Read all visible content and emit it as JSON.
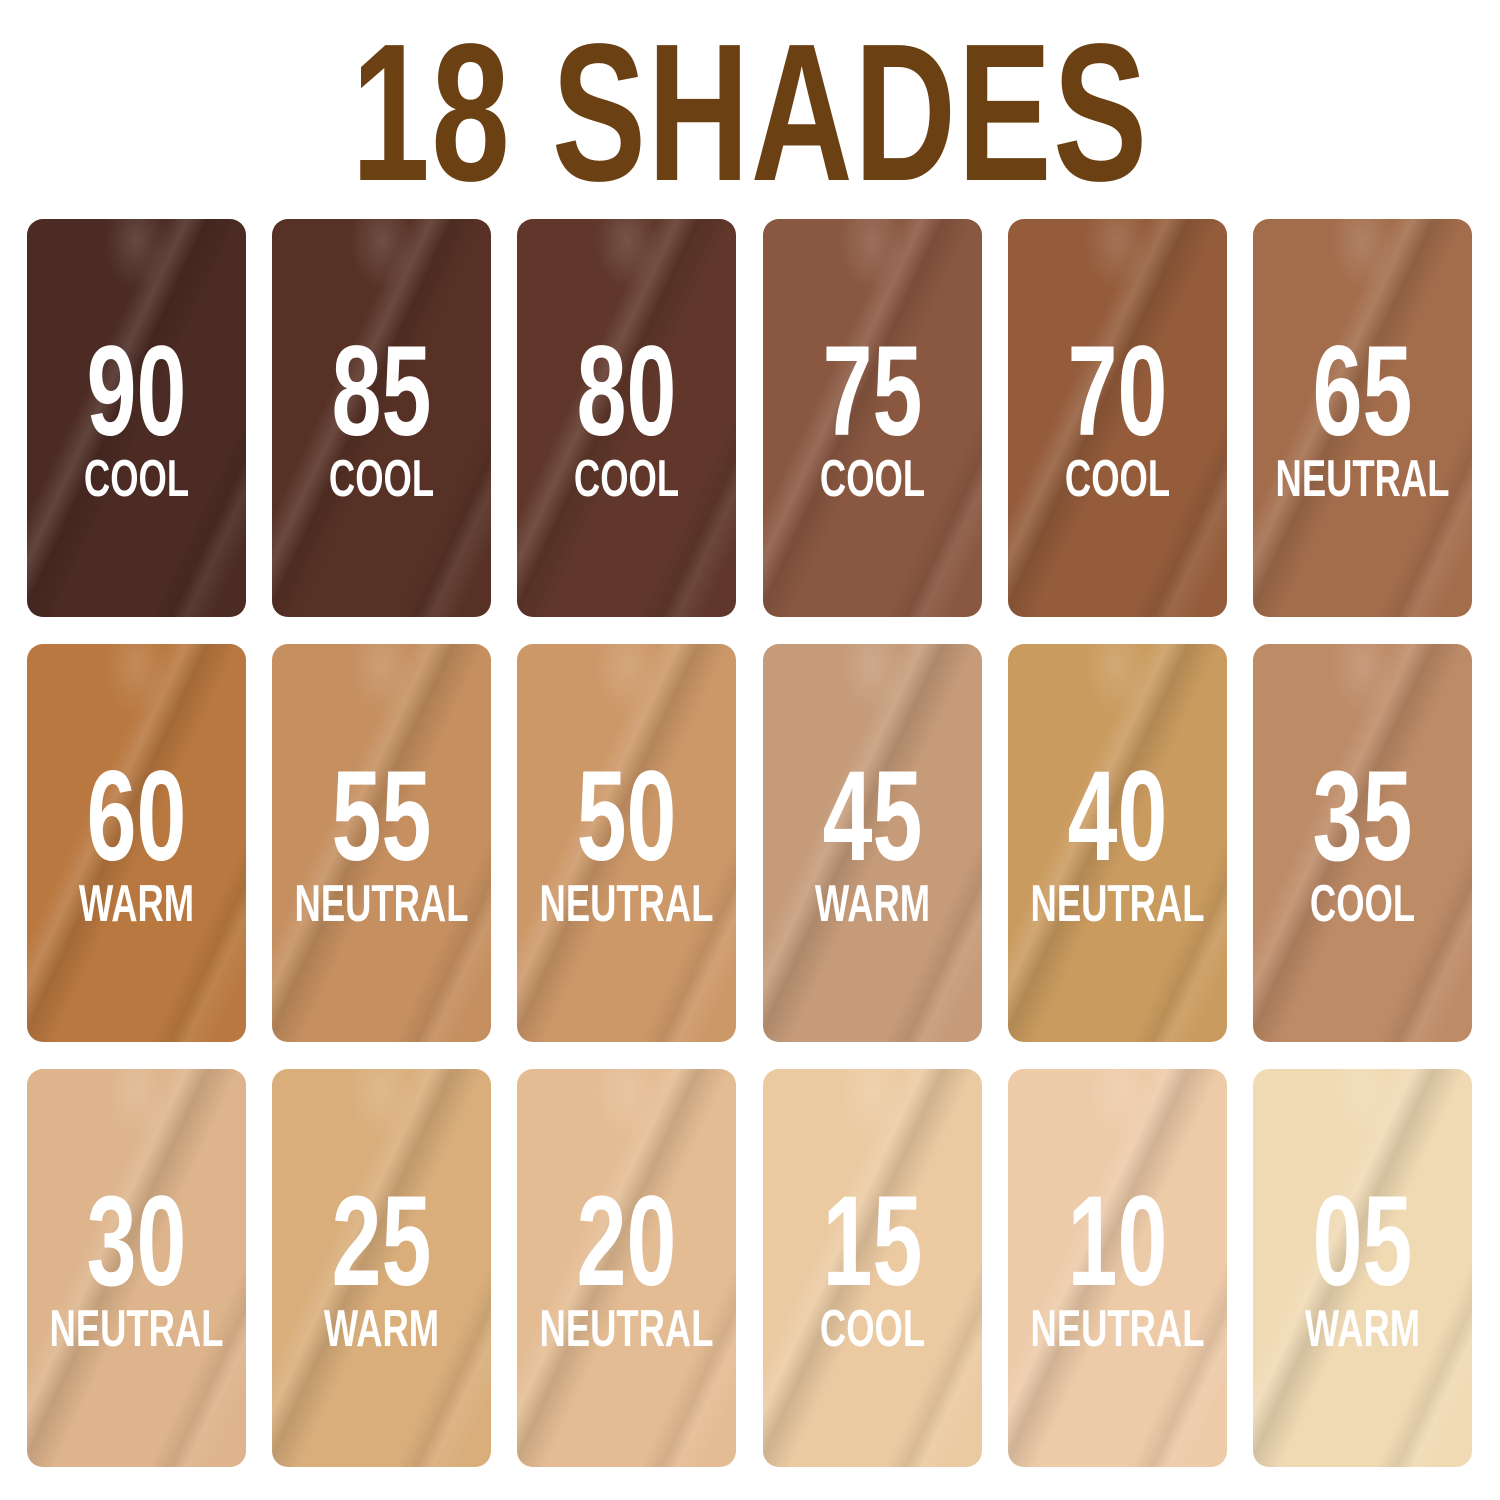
{
  "title": "18 SHADES",
  "title_color": "#6b4114",
  "shades": [
    {
      "number": "90",
      "tone": "COOL",
      "color": "#4b2b23"
    },
    {
      "number": "85",
      "tone": "COOL",
      "color": "#573126"
    },
    {
      "number": "80",
      "tone": "COOL",
      "color": "#60372a"
    },
    {
      "number": "75",
      "tone": "COOL",
      "color": "#8a5841"
    },
    {
      "number": "70",
      "tone": "COOL",
      "color": "#945c3b"
    },
    {
      "number": "65",
      "tone": "NEUTRAL",
      "color": "#a36d4c"
    },
    {
      "number": "60",
      "tone": "WARM",
      "color": "#b97840"
    },
    {
      "number": "55",
      "tone": "NEUTRAL",
      "color": "#c58f5f"
    },
    {
      "number": "50",
      "tone": "NEUTRAL",
      "color": "#cd9868"
    },
    {
      "number": "45",
      "tone": "WARM",
      "color": "#c59b79"
    },
    {
      "number": "40",
      "tone": "NEUTRAL",
      "color": "#ca9b5f"
    },
    {
      "number": "35",
      "tone": "COOL",
      "color": "#be8b67"
    },
    {
      "number": "30",
      "tone": "NEUTRAL",
      "color": "#ddb48b"
    },
    {
      "number": "25",
      "tone": "WARM",
      "color": "#d9ae7b"
    },
    {
      "number": "20",
      "tone": "NEUTRAL",
      "color": "#e4bc93"
    },
    {
      "number": "15",
      "tone": "COOL",
      "color": "#ebcaa2"
    },
    {
      "number": "10",
      "tone": "NEUTRAL",
      "color": "#edcaa8"
    },
    {
      "number": "05",
      "tone": "WARM",
      "color": "#f0dab4"
    }
  ]
}
